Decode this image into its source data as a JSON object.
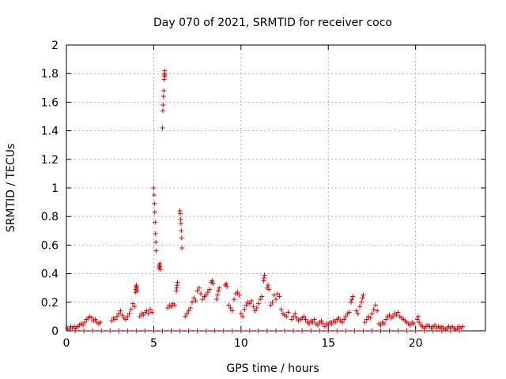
{
  "chart_data": {
    "type": "scatter",
    "title": "Day 070 of 2021, SRMTID for receiver coco",
    "xlabel": "GPS time / hours",
    "ylabel": "SRMTID / TECUs",
    "xlim": [
      0,
      24
    ],
    "ylim": [
      0,
      2
    ],
    "x_ticks": [
      0,
      5,
      10,
      15,
      20
    ],
    "x_tick_labels": [
      "0",
      "5",
      "10",
      "15",
      "20"
    ],
    "y_ticks": [
      0,
      0.2,
      0.4,
      0.6,
      0.8,
      1.0,
      1.2,
      1.4,
      1.6,
      1.8,
      2.0
    ],
    "y_tick_labels": [
      "0",
      "0.2",
      "0.4",
      "0.6",
      "0.8",
      "1",
      "1.2",
      "1.4",
      "1.6",
      "1.8",
      "2"
    ],
    "grid": true,
    "marker": "plus",
    "series": [
      {
        "name": "SRMTID",
        "color": "#e00000",
        "points": [
          [
            0.05,
            0.02
          ],
          [
            0.15,
            0.01
          ],
          [
            0.25,
            0.03
          ],
          [
            0.35,
            0.02
          ],
          [
            0.45,
            0.03
          ],
          [
            0.55,
            0.02
          ],
          [
            0.65,
            0.03
          ],
          [
            0.75,
            0.04
          ],
          [
            0.85,
            0.05
          ],
          [
            0.95,
            0.04
          ],
          [
            1.05,
            0.06
          ],
          [
            1.15,
            0.08
          ],
          [
            1.25,
            0.09
          ],
          [
            1.35,
            0.1
          ],
          [
            1.45,
            0.09
          ],
          [
            1.55,
            0.07
          ],
          [
            1.65,
            0.08
          ],
          [
            1.75,
            0.06
          ],
          [
            1.85,
            0.05
          ],
          [
            1.95,
            0.06
          ],
          [
            2.6,
            0.07
          ],
          [
            2.7,
            0.09
          ],
          [
            2.8,
            0.08
          ],
          [
            2.9,
            0.1
          ],
          [
            3.0,
            0.12
          ],
          [
            3.1,
            0.14
          ],
          [
            3.2,
            0.11
          ],
          [
            3.3,
            0.09
          ],
          [
            3.4,
            0.08
          ],
          [
            3.5,
            0.1
          ],
          [
            3.6,
            0.12
          ],
          [
            3.7,
            0.15
          ],
          [
            3.8,
            0.19
          ],
          [
            3.9,
            0.17
          ],
          [
            3.95,
            0.27
          ],
          [
            3.97,
            0.29
          ],
          [
            3.99,
            0.31
          ],
          [
            4.01,
            0.32
          ],
          [
            4.03,
            0.3
          ],
          [
            4.05,
            0.28
          ],
          [
            4.2,
            0.1
          ],
          [
            4.3,
            0.12
          ],
          [
            4.4,
            0.11
          ],
          [
            4.5,
            0.13
          ],
          [
            4.6,
            0.14
          ],
          [
            4.7,
            0.12
          ],
          [
            4.8,
            0.15
          ],
          [
            4.9,
            0.13
          ],
          [
            5.0,
            1.0
          ],
          [
            5.02,
            0.95
          ],
          [
            5.04,
            0.89
          ],
          [
            5.06,
            0.83
          ],
          [
            5.08,
            0.76
          ],
          [
            5.1,
            0.68
          ],
          [
            5.12,
            0.62
          ],
          [
            5.14,
            0.56
          ],
          [
            5.3,
            0.44
          ],
          [
            5.32,
            0.46
          ],
          [
            5.34,
            0.45
          ],
          [
            5.36,
            0.47
          ],
          [
            5.38,
            0.43
          ],
          [
            5.5,
            1.42
          ],
          [
            5.52,
            1.54
          ],
          [
            5.54,
            1.58
          ],
          [
            5.56,
            1.64
          ],
          [
            5.58,
            1.68
          ],
          [
            5.6,
            1.76
          ],
          [
            5.61,
            1.78
          ],
          [
            5.62,
            1.8
          ],
          [
            5.63,
            1.82
          ],
          [
            5.64,
            1.79
          ],
          [
            5.8,
            0.16
          ],
          [
            5.9,
            0.18
          ],
          [
            6.0,
            0.17
          ],
          [
            6.1,
            0.19
          ],
          [
            6.2,
            0.18
          ],
          [
            6.3,
            0.28
          ],
          [
            6.32,
            0.3
          ],
          [
            6.34,
            0.32
          ],
          [
            6.36,
            0.34
          ],
          [
            6.5,
            0.84
          ],
          [
            6.52,
            0.82
          ],
          [
            6.54,
            0.78
          ],
          [
            6.56,
            0.75
          ],
          [
            6.58,
            0.7
          ],
          [
            6.6,
            0.65
          ],
          [
            6.62,
            0.58
          ],
          [
            6.8,
            0.1
          ],
          [
            6.9,
            0.12
          ],
          [
            7.0,
            0.14
          ],
          [
            7.1,
            0.16
          ],
          [
            7.2,
            0.2
          ],
          [
            7.3,
            0.23
          ],
          [
            7.4,
            0.21
          ],
          [
            7.5,
            0.28
          ],
          [
            7.6,
            0.3
          ],
          [
            7.7,
            0.26
          ],
          [
            7.8,
            0.22
          ],
          [
            7.9,
            0.24
          ],
          [
            8.0,
            0.25
          ],
          [
            8.1,
            0.27
          ],
          [
            8.2,
            0.29
          ],
          [
            8.3,
            0.34
          ],
          [
            8.35,
            0.35
          ],
          [
            8.4,
            0.33
          ],
          [
            8.6,
            0.22
          ],
          [
            8.65,
            0.25
          ],
          [
            8.7,
            0.28
          ],
          [
            8.75,
            0.3
          ],
          [
            9.1,
            0.32
          ],
          [
            9.15,
            0.33
          ],
          [
            9.2,
            0.31
          ],
          [
            9.3,
            0.18
          ],
          [
            9.4,
            0.16
          ],
          [
            9.5,
            0.14
          ],
          [
            9.6,
            0.22
          ],
          [
            9.7,
            0.26
          ],
          [
            9.8,
            0.27
          ],
          [
            9.9,
            0.25
          ],
          [
            10.0,
            0.12
          ],
          [
            10.1,
            0.1
          ],
          [
            10.2,
            0.15
          ],
          [
            10.3,
            0.18
          ],
          [
            10.4,
            0.2
          ],
          [
            10.5,
            0.19
          ],
          [
            10.6,
            0.21
          ],
          [
            10.7,
            0.17
          ],
          [
            10.8,
            0.14
          ],
          [
            10.9,
            0.16
          ],
          [
            11.0,
            0.19
          ],
          [
            11.1,
            0.22
          ],
          [
            11.2,
            0.24
          ],
          [
            11.3,
            0.35
          ],
          [
            11.32,
            0.37
          ],
          [
            11.34,
            0.39
          ],
          [
            11.5,
            0.3
          ],
          [
            11.55,
            0.32
          ],
          [
            11.6,
            0.29
          ],
          [
            11.7,
            0.18
          ],
          [
            11.8,
            0.2
          ],
          [
            11.9,
            0.25
          ],
          [
            12.0,
            0.22
          ],
          [
            12.1,
            0.26
          ],
          [
            12.2,
            0.24
          ],
          [
            12.3,
            0.15
          ],
          [
            12.4,
            0.12
          ],
          [
            12.5,
            0.11
          ],
          [
            12.6,
            0.1
          ],
          [
            12.7,
            0.13
          ],
          [
            12.9,
            0.08
          ],
          [
            13.0,
            0.1
          ],
          [
            13.1,
            0.12
          ],
          [
            13.2,
            0.09
          ],
          [
            13.3,
            0.07
          ],
          [
            13.4,
            0.08
          ],
          [
            13.5,
            0.09
          ],
          [
            13.6,
            0.1
          ],
          [
            13.7,
            0.08
          ],
          [
            13.8,
            0.06
          ],
          [
            13.9,
            0.05
          ],
          [
            14.0,
            0.07
          ],
          [
            14.1,
            0.06
          ],
          [
            14.2,
            0.08
          ],
          [
            14.3,
            0.05
          ],
          [
            14.4,
            0.04
          ],
          [
            14.5,
            0.06
          ],
          [
            14.6,
            0.07
          ],
          [
            14.7,
            0.05
          ],
          [
            14.8,
            0.03
          ],
          [
            14.9,
            0.05
          ],
          [
            15.0,
            0.04
          ],
          [
            15.1,
            0.06
          ],
          [
            15.2,
            0.05
          ],
          [
            15.3,
            0.07
          ],
          [
            15.4,
            0.06
          ],
          [
            15.5,
            0.08
          ],
          [
            15.6,
            0.09
          ],
          [
            15.7,
            0.07
          ],
          [
            15.8,
            0.06
          ],
          [
            15.9,
            0.08
          ],
          [
            16.0,
            0.1
          ],
          [
            16.1,
            0.12
          ],
          [
            16.2,
            0.13
          ],
          [
            16.3,
            0.2
          ],
          [
            16.35,
            0.22
          ],
          [
            16.4,
            0.24
          ],
          [
            16.6,
            0.14
          ],
          [
            16.7,
            0.12
          ],
          [
            16.8,
            0.17
          ],
          [
            16.9,
            0.2
          ],
          [
            16.95,
            0.23
          ],
          [
            17.0,
            0.25
          ],
          [
            17.1,
            0.06
          ],
          [
            17.2,
            0.08
          ],
          [
            17.3,
            0.1
          ],
          [
            17.4,
            0.09
          ],
          [
            17.5,
            0.12
          ],
          [
            17.6,
            0.15
          ],
          [
            17.7,
            0.18
          ],
          [
            17.8,
            0.14
          ],
          [
            17.9,
            0.05
          ],
          [
            18.0,
            0.04
          ],
          [
            18.1,
            0.06
          ],
          [
            18.2,
            0.05
          ],
          [
            18.3,
            0.08
          ],
          [
            18.4,
            0.1
          ],
          [
            18.5,
            0.11
          ],
          [
            18.6,
            0.09
          ],
          [
            18.7,
            0.1
          ],
          [
            18.8,
            0.12
          ],
          [
            18.9,
            0.11
          ],
          [
            19.0,
            0.13
          ],
          [
            19.1,
            0.1
          ],
          [
            19.2,
            0.09
          ],
          [
            19.3,
            0.08
          ],
          [
            19.4,
            0.07
          ],
          [
            19.5,
            0.06
          ],
          [
            19.6,
            0.05
          ],
          [
            19.7,
            0.04
          ],
          [
            19.8,
            0.06
          ],
          [
            19.9,
            0.05
          ],
          [
            20.1,
            0.08
          ],
          [
            20.15,
            0.1
          ],
          [
            20.2,
            0.06
          ],
          [
            20.3,
            0.04
          ],
          [
            20.4,
            0.03
          ],
          [
            20.5,
            0.02
          ],
          [
            20.6,
            0.03
          ],
          [
            20.7,
            0.04
          ],
          [
            20.8,
            0.03
          ],
          [
            20.9,
            0.02
          ],
          [
            21.0,
            0.03
          ],
          [
            21.1,
            0.04
          ],
          [
            21.2,
            0.02
          ],
          [
            21.3,
            0.03
          ],
          [
            21.4,
            0.02
          ],
          [
            21.5,
            0.03
          ],
          [
            21.6,
            0.02
          ],
          [
            21.7,
            0.01
          ],
          [
            21.8,
            0.02
          ],
          [
            21.9,
            0.03
          ],
          [
            22.0,
            0.02
          ],
          [
            22.1,
            0.03
          ],
          [
            22.2,
            0.02
          ],
          [
            22.3,
            0.01
          ],
          [
            22.4,
            0.02
          ],
          [
            22.5,
            0.03
          ],
          [
            22.6,
            0.02
          ],
          [
            22.7,
            0.03
          ],
          [
            0.5,
            0.0
          ],
          [
            1.0,
            0.0
          ],
          [
            1.5,
            0.0
          ],
          [
            2.0,
            0.0
          ],
          [
            2.5,
            0.0
          ],
          [
            3.0,
            0.0
          ],
          [
            3.5,
            0.0
          ],
          [
            4.0,
            0.0
          ],
          [
            4.5,
            0.0
          ],
          [
            5.0,
            0.0
          ],
          [
            5.5,
            0.0
          ],
          [
            6.0,
            0.0
          ],
          [
            6.5,
            0.0
          ],
          [
            7.0,
            0.0
          ],
          [
            7.5,
            0.0
          ],
          [
            8.0,
            0.0
          ],
          [
            8.5,
            0.0
          ],
          [
            9.0,
            0.0
          ],
          [
            9.5,
            0.0
          ],
          [
            10.0,
            0.0
          ],
          [
            10.5,
            0.0
          ],
          [
            11.0,
            0.0
          ],
          [
            11.5,
            0.0
          ],
          [
            12.0,
            0.0
          ],
          [
            12.5,
            0.0
          ],
          [
            13.0,
            0.0
          ],
          [
            13.5,
            0.0
          ],
          [
            14.0,
            0.0
          ],
          [
            14.5,
            0.0
          ],
          [
            15.0,
            0.0
          ],
          [
            15.5,
            0.0
          ],
          [
            16.0,
            0.0
          ],
          [
            16.5,
            0.0
          ],
          [
            17.0,
            0.0
          ],
          [
            17.5,
            0.0
          ],
          [
            18.0,
            0.0
          ],
          [
            18.5,
            0.0
          ],
          [
            19.0,
            0.0
          ],
          [
            19.5,
            0.0
          ],
          [
            20.0,
            0.0
          ],
          [
            20.5,
            0.0
          ],
          [
            21.0,
            0.0
          ],
          [
            21.5,
            0.0
          ],
          [
            22.0,
            0.0
          ],
          [
            22.5,
            0.0
          ]
        ]
      }
    ]
  }
}
